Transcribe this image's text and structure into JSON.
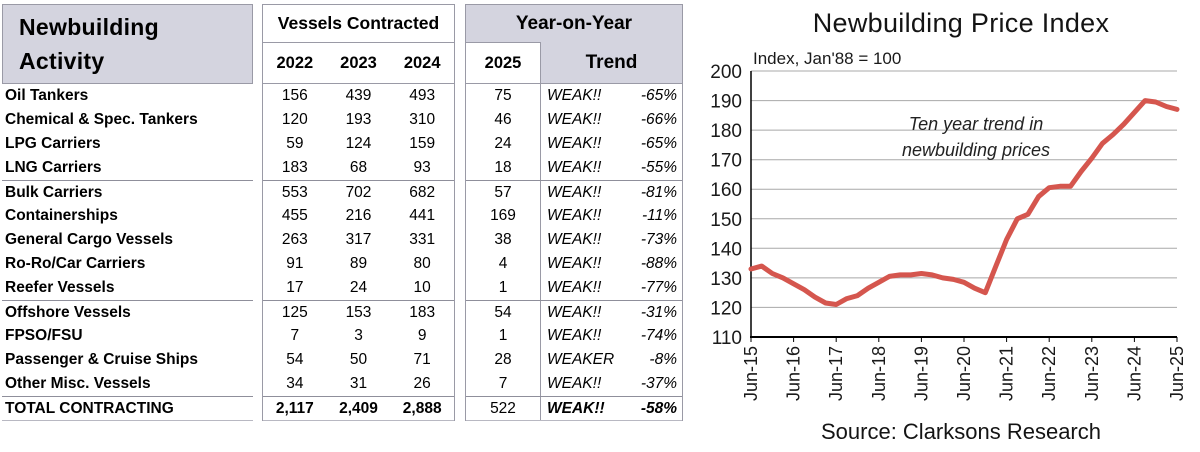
{
  "colors": {
    "accent_lavender": "#d4d4df",
    "border_gray": "#9a9aa6",
    "line_red": "#d5564e",
    "grid_gray": "#a8a8a8"
  },
  "table": {
    "title_line1": "Newbuilding",
    "title_line2": "Activity",
    "vessels_header": "Vessels Contracted",
    "col_2022": "2022",
    "col_2023": "2023",
    "col_2024": "2024",
    "yoy_header": "Year-on-Year",
    "col_2025": "2025",
    "trend_header": "Trend",
    "rows": [
      {
        "label": "Oil Tankers",
        "v2022": "156",
        "v2023": "439",
        "v2024": "493",
        "v2025": "75",
        "trend": "WEAK!!",
        "pct": "-65%"
      },
      {
        "label": "Chemical & Spec. Tankers",
        "v2022": "120",
        "v2023": "193",
        "v2024": "310",
        "v2025": "46",
        "trend": "WEAK!!",
        "pct": "-66%"
      },
      {
        "label": "LPG Carriers",
        "v2022": "59",
        "v2023": "124",
        "v2024": "159",
        "v2025": "24",
        "trend": "WEAK!!",
        "pct": "-65%"
      },
      {
        "label": "LNG Carriers",
        "v2022": "183",
        "v2023": "68",
        "v2024": "93",
        "v2025": "18",
        "trend": "WEAK!!",
        "pct": "-55%"
      },
      {
        "label": "Bulk Carriers",
        "v2022": "553",
        "v2023": "702",
        "v2024": "682",
        "v2025": "57",
        "trend": "WEAK!!",
        "pct": "-81%",
        "group_start": true
      },
      {
        "label": "Containerships",
        "v2022": "455",
        "v2023": "216",
        "v2024": "441",
        "v2025": "169",
        "trend": "WEAK!!",
        "pct": "-11%"
      },
      {
        "label": "General Cargo Vessels",
        "v2022": "263",
        "v2023": "317",
        "v2024": "331",
        "v2025": "38",
        "trend": "WEAK!!",
        "pct": "-73%"
      },
      {
        "label": "Ro-Ro/Car Carriers",
        "v2022": "91",
        "v2023": "89",
        "v2024": "80",
        "v2025": "4",
        "trend": "WEAK!!",
        "pct": "-88%"
      },
      {
        "label": "Reefer Vessels",
        "v2022": "17",
        "v2023": "24",
        "v2024": "10",
        "v2025": "1",
        "trend": "WEAK!!",
        "pct": "-77%"
      },
      {
        "label": "Offshore Vessels",
        "v2022": "125",
        "v2023": "153",
        "v2024": "183",
        "v2025": "54",
        "trend": "WEAK!!",
        "pct": "-31%",
        "group_start": true
      },
      {
        "label": "FPSO/FSU",
        "v2022": "7",
        "v2023": "3",
        "v2024": "9",
        "v2025": "1",
        "trend": "WEAK!!",
        "pct": "-74%"
      },
      {
        "label": "Passenger & Cruise Ships",
        "v2022": "54",
        "v2023": "50",
        "v2024": "71",
        "v2025": "28",
        "trend": "WEAKER",
        "pct": "-8%"
      },
      {
        "label": "Other Misc. Vessels",
        "v2022": "34",
        "v2023": "31",
        "v2024": "26",
        "v2025": "7",
        "trend": "WEAK!!",
        "pct": "-37%"
      }
    ],
    "total": {
      "label": "TOTAL CONTRACTING",
      "v2022": "2,117",
      "v2023": "2,409",
      "v2024": "2,888",
      "v2025": "522",
      "trend": "WEAK!!",
      "pct": "-58%"
    }
  },
  "chart_data": {
    "type": "line",
    "title": "Newbuilding Price Index",
    "subtitle": "Index, Jan'88 = 100",
    "annotation_line1": "Ten year trend in",
    "annotation_line2": "newbuilding prices",
    "source": "Source: Clarksons Research",
    "ylim": [
      110,
      200
    ],
    "yticks": [
      110,
      120,
      130,
      140,
      150,
      160,
      170,
      180,
      190,
      200
    ],
    "xticklabels": [
      "Jun-15",
      "Jun-16",
      "Jun-17",
      "Jun-18",
      "Jun-19",
      "Jun-20",
      "Jun-21",
      "Jun-22",
      "Jun-23",
      "Jun-24",
      "Jun-25"
    ],
    "grid": true,
    "legend": "none",
    "line_color": "#d5564e",
    "x": [
      "Jun-15",
      "Sep-15",
      "Dec-15",
      "Mar-16",
      "Jun-16",
      "Sep-16",
      "Dec-16",
      "Mar-17",
      "Jun-17",
      "Sep-17",
      "Dec-17",
      "Mar-18",
      "Jun-18",
      "Sep-18",
      "Dec-18",
      "Mar-19",
      "Jun-19",
      "Sep-19",
      "Dec-19",
      "Mar-20",
      "Jun-20",
      "Sep-20",
      "Dec-20",
      "Mar-21",
      "Jun-21",
      "Sep-21",
      "Dec-21",
      "Mar-22",
      "Jun-22",
      "Sep-22",
      "Dec-22",
      "Mar-23",
      "Jun-23",
      "Sep-23",
      "Dec-23",
      "Mar-24",
      "Jun-24",
      "Sep-24",
      "Dec-24",
      "Mar-25",
      "Jun-25"
    ],
    "values": [
      133,
      134,
      131.5,
      130,
      128,
      126,
      123.5,
      121.5,
      121,
      123,
      124,
      126.5,
      128.5,
      130.5,
      131,
      131,
      131.5,
      131,
      130,
      129.5,
      128.5,
      126.5,
      125,
      134,
      143,
      150,
      151.5,
      157.5,
      160.5,
      161,
      161,
      166,
      170.5,
      175.5,
      178.5,
      182,
      186,
      190,
      189.5,
      188,
      187
    ]
  }
}
